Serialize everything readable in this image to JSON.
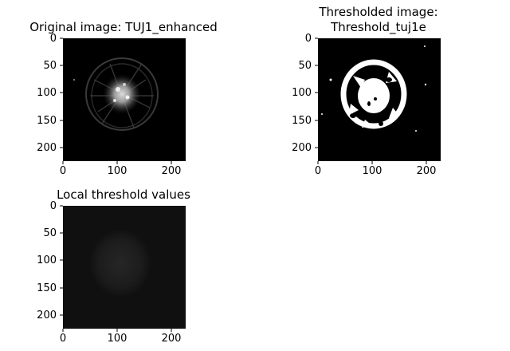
{
  "figure": {
    "panels": [
      {
        "title": "Original image: TUJ1_enhanced",
        "xticks": [
          "0",
          "100",
          "200"
        ],
        "yticks": [
          "0",
          "50",
          "100",
          "150",
          "200"
        ]
      },
      {
        "title_line1": "Thresholded image:",
        "title_line2": "Threshold_tuj1e",
        "xticks": [
          "0",
          "100",
          "200"
        ],
        "yticks": [
          "0",
          "50",
          "100",
          "150",
          "200"
        ]
      },
      {
        "title": "Local threshold values",
        "xticks": [
          "0",
          "100",
          "200"
        ],
        "yticks": [
          "0",
          "50",
          "100",
          "150",
          "200"
        ]
      }
    ]
  },
  "colors": {
    "background": "#ffffff",
    "image_bg": "#000000",
    "threshold_fg": "#ffffff"
  }
}
